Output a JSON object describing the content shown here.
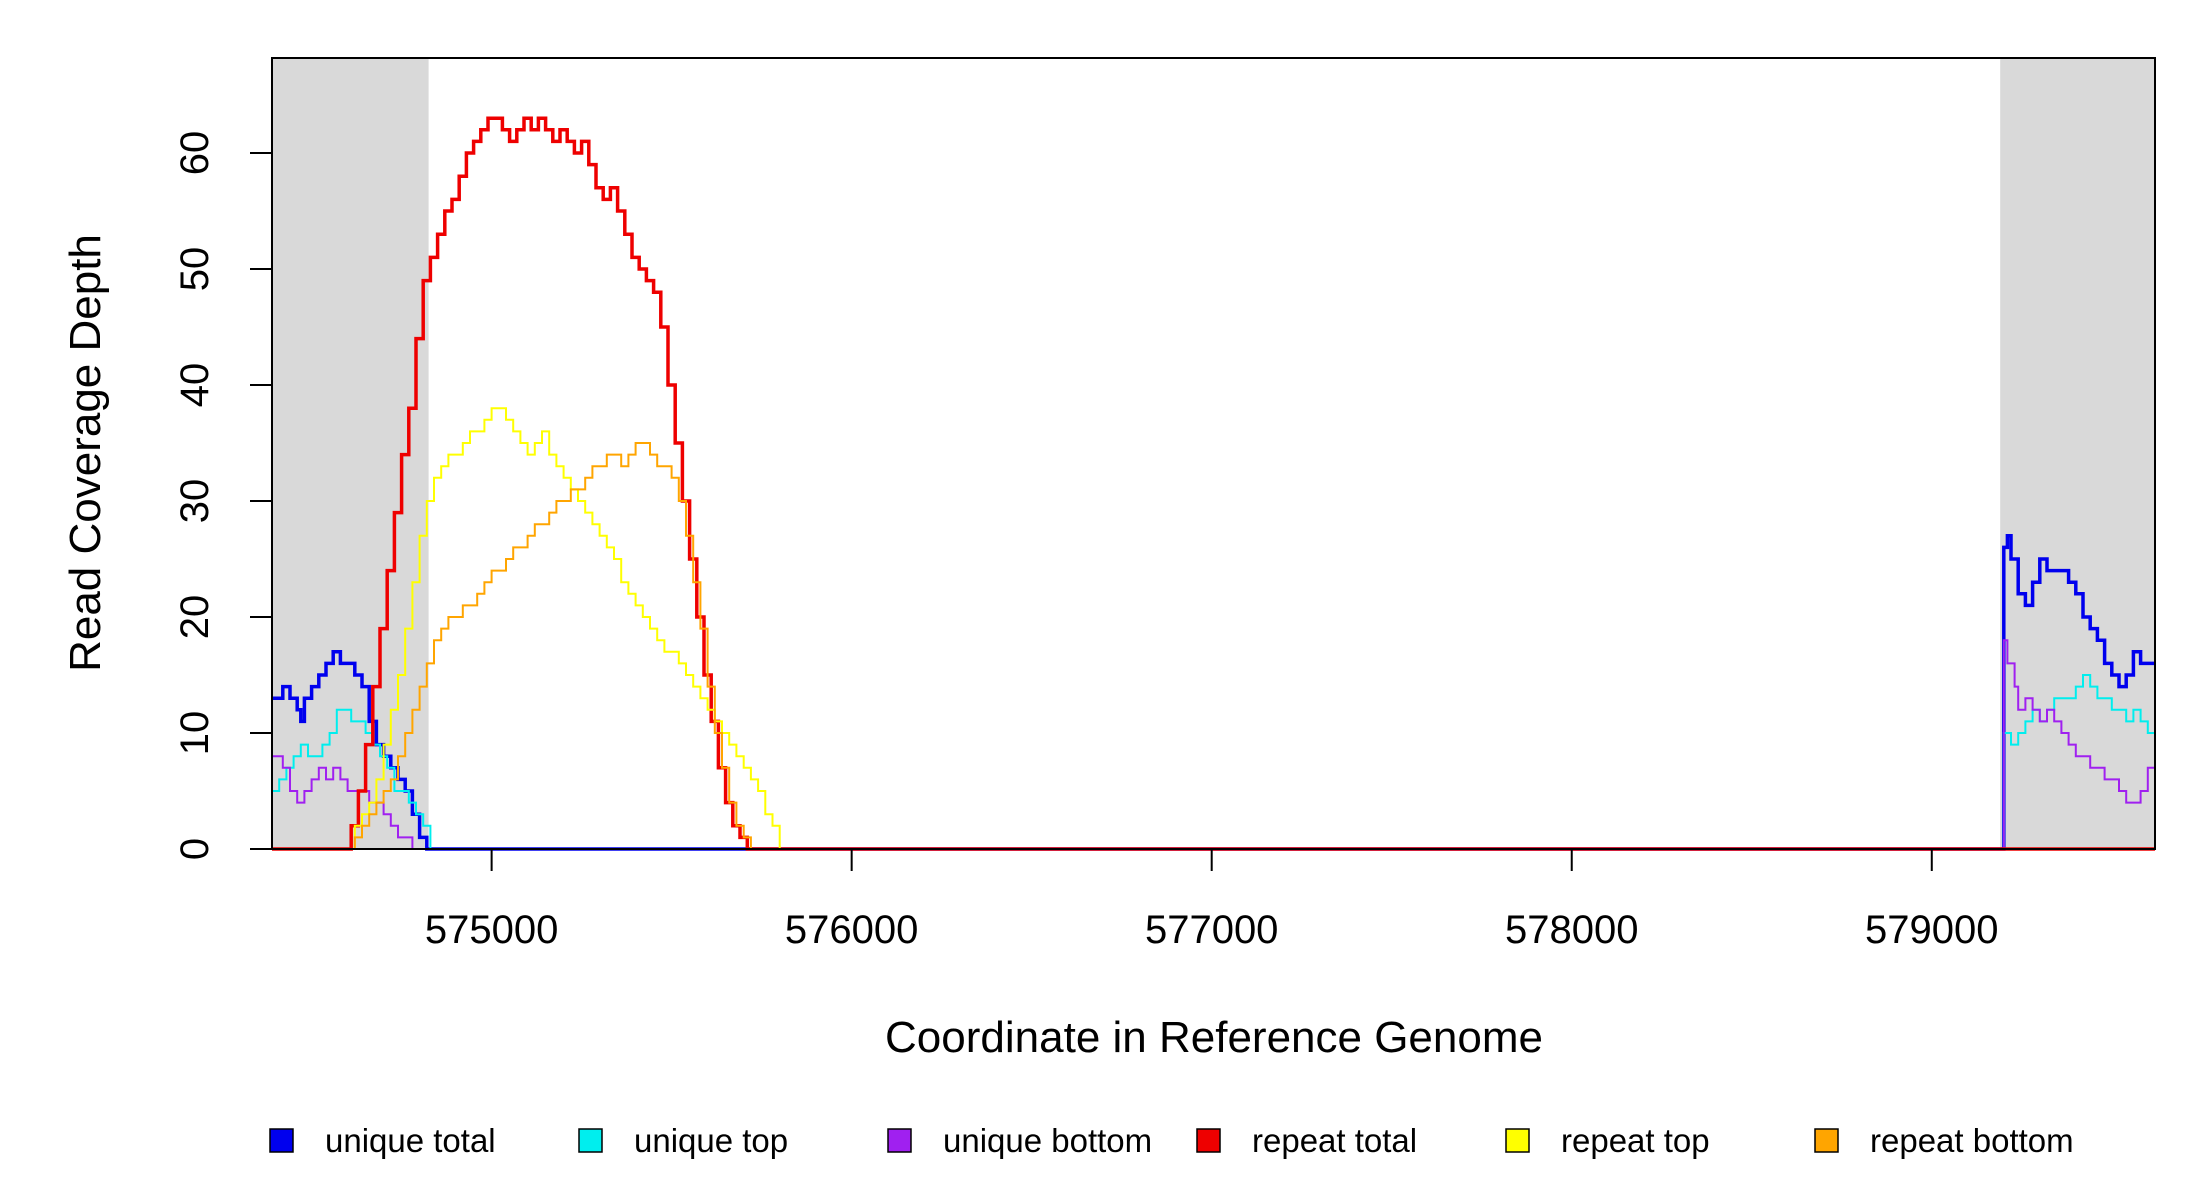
{
  "chart_data": {
    "type": "line",
    "title": "",
    "xlabel": "Coordinate in Reference Genome",
    "ylabel": "Read Coverage Depth",
    "xlim": [
      574390,
      579620
    ],
    "ylim": [
      0,
      68
    ],
    "x_ticks": [
      575000,
      576000,
      577000,
      578000,
      579000
    ],
    "x_tick_labels": [
      "575000",
      "576000",
      "577000",
      "578000",
      "579000"
    ],
    "y_ticks": [
      0,
      10,
      20,
      30,
      40,
      50,
      60
    ],
    "y_tick_labels": [
      "0",
      "10",
      "20",
      "30",
      "40",
      "50",
      "60"
    ],
    "grid": false,
    "legend_position": "bottom",
    "shaded_regions": [
      {
        "x": [
          574390,
          574825
        ],
        "color": "#d9d9d9"
      },
      {
        "x": [
          579190,
          579620
        ],
        "color": "#d9d9d9"
      }
    ],
    "series": [
      {
        "name": "unique total",
        "color": "#0000ee",
        "width": 3.5,
        "x": [
          574390,
          574420,
          574440,
          574460,
          574470,
          574480,
          574500,
          574520,
          574540,
          574560,
          574580,
          574600,
          574620,
          574640,
          574660,
          574680,
          574700,
          574720,
          574740,
          574760,
          574780,
          574800,
          574820,
          574840,
          574850,
          579195,
          579200,
          579210,
          579220,
          579240,
          579260,
          579280,
          579300,
          579320,
          579360,
          579380,
          579400,
          579420,
          579440,
          579460,
          579480,
          579500,
          579520,
          579540,
          579560,
          579580,
          579600,
          579620
        ],
        "y": [
          13,
          14,
          13,
          12,
          11,
          13,
          14,
          15,
          16,
          17,
          16,
          16,
          15,
          14,
          11,
          9,
          8,
          7,
          6,
          5,
          3,
          1,
          0,
          0,
          0,
          0,
          26,
          27,
          25,
          22,
          21,
          23,
          25,
          24,
          24,
          23,
          22,
          20,
          19,
          18,
          16,
          15,
          14,
          15,
          17,
          16,
          16,
          16
        ]
      },
      {
        "name": "unique top",
        "color": "#00eeee",
        "width": 2,
        "x": [
          574390,
          574410,
          574430,
          574450,
          574470,
          574490,
          574510,
          574530,
          574550,
          574570,
          574590,
          574610,
          574630,
          574650,
          574670,
          574690,
          574710,
          574730,
          574750,
          574770,
          574790,
          574810,
          574830,
          574850,
          579195,
          579200,
          579220,
          579240,
          579260,
          579280,
          579300,
          579320,
          579340,
          579360,
          579380,
          579400,
          579420,
          579440,
          579460,
          579480,
          579500,
          579520,
          579540,
          579560,
          579580,
          579600,
          579620
        ],
        "y": [
          5,
          6,
          7,
          8,
          9,
          8,
          8,
          9,
          10,
          12,
          12,
          11,
          11,
          10,
          9,
          8,
          7,
          5,
          5,
          4,
          3,
          2,
          0,
          0,
          0,
          10,
          9,
          10,
          11,
          12,
          11,
          12,
          13,
          13,
          13,
          14,
          15,
          14,
          13,
          13,
          12,
          12,
          11,
          12,
          11,
          10,
          9
        ]
      },
      {
        "name": "unique bottom",
        "color": "#a020f0",
        "width": 2,
        "x": [
          574390,
          574420,
          574440,
          574460,
          574480,
          574500,
          574520,
          574540,
          574560,
          574580,
          574600,
          574620,
          574640,
          574660,
          574680,
          574700,
          574720,
          574740,
          574760,
          574780,
          574800,
          574820,
          574840,
          579195,
          579200,
          579210,
          579230,
          579240,
          579260,
          579280,
          579300,
          579320,
          579340,
          579360,
          579380,
          579400,
          579420,
          579440,
          579460,
          579480,
          579500,
          579520,
          579540,
          579560,
          579580,
          579600,
          579620
        ],
        "y": [
          8,
          7,
          5,
          4,
          5,
          6,
          7,
          6,
          7,
          6,
          5,
          5,
          5,
          4,
          4,
          3,
          2,
          1,
          1,
          0,
          0,
          0,
          0,
          0,
          18,
          16,
          14,
          12,
          13,
          12,
          11,
          12,
          11,
          10,
          9,
          8,
          8,
          7,
          7,
          6,
          6,
          5,
          4,
          4,
          5,
          7,
          7
        ]
      },
      {
        "name": "repeat total",
        "color": "#ee0000",
        "width": 3.5,
        "x": [
          574390,
          574600,
          574610,
          574630,
          574650,
          574670,
          574690,
          574710,
          574730,
          574750,
          574770,
          574790,
          574810,
          574830,
          574850,
          574870,
          574890,
          574910,
          574930,
          574950,
          574970,
          574990,
          575010,
          575030,
          575050,
          575070,
          575090,
          575110,
          575130,
          575150,
          575170,
          575190,
          575210,
          575230,
          575250,
          575270,
          575290,
          575310,
          575330,
          575350,
          575370,
          575390,
          575410,
          575430,
          575450,
          575470,
          575490,
          575510,
          575530,
          575550,
          575570,
          575590,
          575610,
          575630,
          575650,
          575670,
          575690,
          575710,
          575730,
          575750,
          575770,
          575790,
          575800,
          579620
        ],
        "y": [
          0,
          0,
          2,
          5,
          9,
          14,
          19,
          24,
          29,
          34,
          38,
          44,
          49,
          51,
          53,
          55,
          56,
          58,
          60,
          61,
          62,
          63,
          63,
          62,
          61,
          62,
          63,
          62,
          63,
          62,
          61,
          62,
          61,
          60,
          61,
          59,
          57,
          56,
          57,
          55,
          53,
          51,
          50,
          49,
          48,
          45,
          40,
          35,
          30,
          25,
          20,
          15,
          11,
          7,
          4,
          2,
          1,
          0,
          0,
          0,
          0,
          0,
          0,
          0
        ]
      },
      {
        "name": "repeat top",
        "color": "#ffff00",
        "width": 2,
        "x": [
          574390,
          574600,
          574620,
          574640,
          574660,
          574680,
          574700,
          574720,
          574740,
          574760,
          574780,
          574800,
          574820,
          574840,
          574860,
          574880,
          574900,
          574920,
          574940,
          574960,
          574980,
          575000,
          575020,
          575040,
          575060,
          575080,
          575100,
          575120,
          575140,
          575160,
          575180,
          575200,
          575220,
          575240,
          575260,
          575280,
          575300,
          575320,
          575340,
          575360,
          575380,
          575400,
          575420,
          575440,
          575460,
          575480,
          575500,
          575520,
          575540,
          575560,
          575580,
          575600,
          575620,
          575640,
          575660,
          575680,
          575700,
          575720,
          575740,
          575760,
          575780,
          575800,
          579620
        ],
        "y": [
          0,
          0,
          2,
          3,
          4,
          6,
          9,
          12,
          15,
          19,
          23,
          27,
          30,
          32,
          33,
          34,
          34,
          35,
          36,
          36,
          37,
          38,
          38,
          37,
          36,
          35,
          34,
          35,
          36,
          34,
          33,
          32,
          31,
          30,
          29,
          28,
          27,
          26,
          25,
          23,
          22,
          21,
          20,
          19,
          18,
          17,
          17,
          16,
          15,
          14,
          13,
          12,
          11,
          10,
          9,
          8,
          7,
          6,
          5,
          3,
          2,
          0,
          0
        ]
      },
      {
        "name": "repeat bottom",
        "color": "#ffa500",
        "width": 2,
        "x": [
          574390,
          574600,
          574620,
          574640,
          574660,
          574680,
          574700,
          574720,
          574740,
          574760,
          574780,
          574800,
          574820,
          574840,
          574860,
          574880,
          574900,
          574920,
          574940,
          574960,
          574980,
          575000,
          575020,
          575040,
          575060,
          575080,
          575100,
          575120,
          575140,
          575160,
          575180,
          575200,
          575220,
          575240,
          575260,
          575280,
          575300,
          575320,
          575340,
          575360,
          575380,
          575400,
          575420,
          575440,
          575460,
          575480,
          575500,
          575520,
          575540,
          575560,
          575580,
          575600,
          575620,
          575640,
          575660,
          575680,
          575700,
          575720,
          575740,
          575760,
          575780,
          575800,
          579620
        ],
        "y": [
          0,
          0,
          1,
          2,
          3,
          4,
          5,
          6,
          8,
          10,
          12,
          14,
          16,
          18,
          19,
          20,
          20,
          21,
          21,
          22,
          23,
          24,
          24,
          25,
          26,
          26,
          27,
          28,
          28,
          29,
          30,
          30,
          31,
          31,
          32,
          33,
          33,
          34,
          34,
          33,
          34,
          35,
          35,
          34,
          33,
          33,
          32,
          30,
          27,
          23,
          19,
          14,
          10,
          7,
          4,
          2,
          1,
          0,
          0,
          0,
          0,
          0,
          0
        ]
      }
    ]
  }
}
